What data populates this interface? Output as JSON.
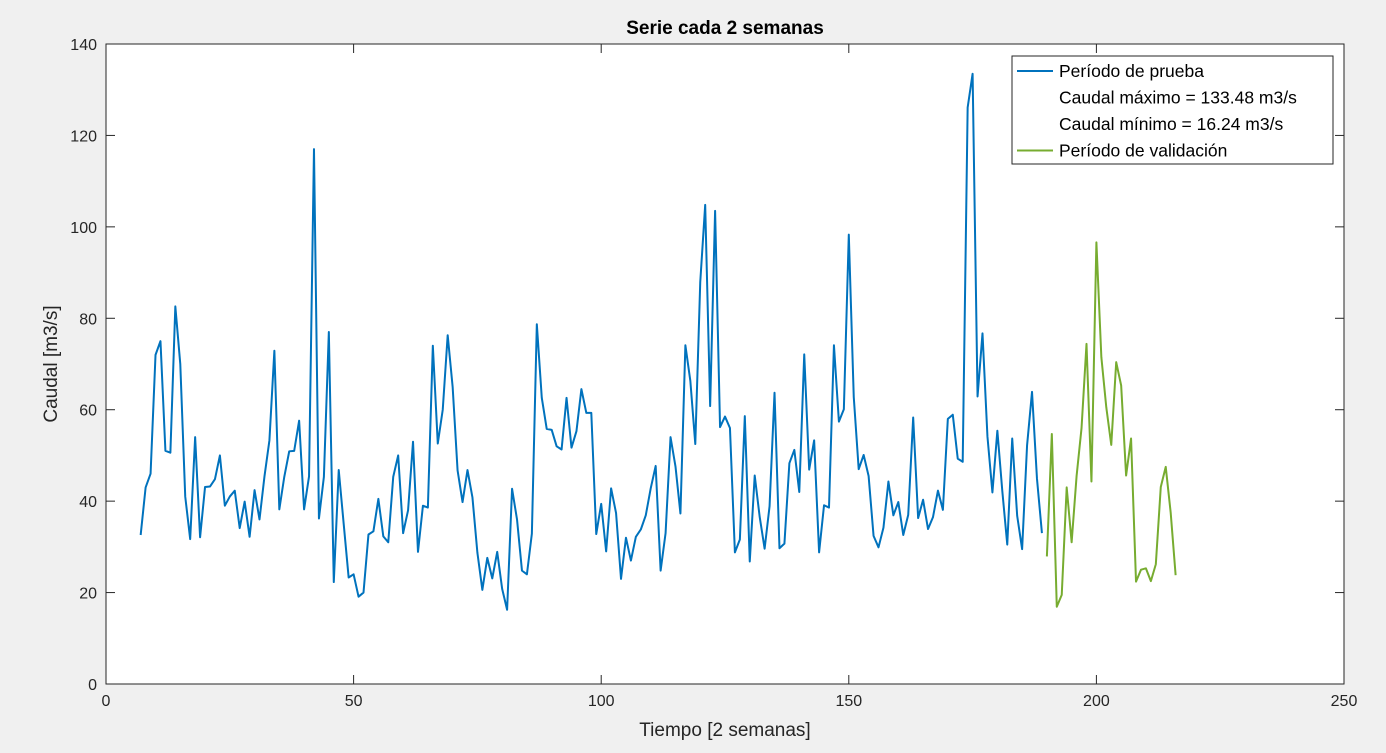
{
  "chart_data": {
    "type": "line",
    "title": "Serie cada 2 semanas",
    "xlabel": "Tiempo [2 semanas]",
    "ylabel": "Caudal [m3/s]",
    "xlim": [
      0,
      250
    ],
    "ylim": [
      0,
      140
    ],
    "xticks": [
      0,
      50,
      100,
      150,
      200,
      250
    ],
    "yticks": [
      0,
      20,
      40,
      60,
      80,
      100,
      120,
      140
    ],
    "grid": false,
    "legend_position": "top-right",
    "legend": [
      {
        "label": "Período de prueba",
        "line": true,
        "color": "#0072BD"
      },
      {
        "label": "Caudal máximo = 133.48 m3/s",
        "line": false
      },
      {
        "label": "Caudal mínimo = 16.24 m3/s",
        "line": false
      },
      {
        "label": "Período de validación",
        "line": true,
        "color": "#77AC30"
      }
    ],
    "series": [
      {
        "name": "Período de prueba",
        "color": "#0072BD",
        "x_start": 7,
        "values": [
          32.6,
          43,
          46,
          72,
          75,
          51,
          50.6,
          82.6,
          70,
          41,
          31.7,
          54,
          32.1,
          43.1,
          43.2,
          44.8,
          50,
          39,
          41,
          42.3,
          34.1,
          39.9,
          32.2,
          42.4,
          36,
          45.4,
          53.3,
          72.9,
          38.2,
          45.3,
          50.9,
          51,
          57.6,
          38.2,
          45.4,
          117,
          36.2,
          45.3,
          77,
          22.3,
          46.8,
          35,
          23.3,
          24,
          19.1,
          20,
          32.7,
          33.4,
          40.5,
          32.3,
          31,
          45.3,
          50,
          33,
          38,
          53,
          28.9,
          39,
          38.6,
          74,
          52.6,
          60,
          76.3,
          65,
          46.7,
          39.8,
          46.8,
          40.8,
          28.7,
          20.6,
          27.6,
          23.1,
          28.9,
          20.8,
          16.24,
          42.7,
          36,
          24.8,
          24,
          32.9,
          78.7,
          62.6,
          55.8,
          55.6,
          52,
          51.3,
          62.6,
          51.7,
          55.3,
          64.5,
          59.3,
          59.3,
          32.8,
          39.4,
          29,
          42.8,
          37.4,
          23,
          32,
          27,
          32.2,
          33.8,
          36.9,
          42.8,
          47.7,
          24.8,
          33,
          54,
          47.6,
          37.3,
          74.1,
          66.3,
          52.5,
          87.9,
          104.8,
          60.8,
          103.5,
          56.2,
          58.5,
          56,
          28.8,
          31.6,
          58.6,
          26.8,
          45.6,
          36.6,
          29.6,
          38.9,
          63.7,
          29.7,
          30.7,
          48.3,
          51.2,
          42,
          72.1,
          46.9,
          53.3,
          28.8,
          39.1,
          38.6,
          74.1,
          57.4,
          60.1,
          98.3,
          62.8,
          47,
          50.1,
          45.5,
          32.4,
          29.9,
          34.2,
          44.3,
          36.9,
          39.8,
          32.6,
          37,
          58.3,
          36.3,
          40.3,
          33.9,
          36.5,
          42.3,
          38.1,
          58,
          58.9,
          49.3,
          48.6,
          126.1,
          133.48,
          62.9,
          76.7,
          54.1,
          41.9,
          55.4,
          42.2,
          30.5,
          53.7,
          36.8,
          29.5,
          52.2,
          63.9,
          44.9,
          33
        ]
      },
      {
        "name": "Período de validación",
        "color": "#77AC30",
        "x_start": 190,
        "values": [
          27.9,
          54.7,
          16.9,
          19.5,
          43,
          31,
          45.5,
          56,
          74.4,
          44.3,
          96.6,
          71.5,
          60.5,
          52.3,
          70.4,
          65.3,
          45.6,
          53.7,
          22.4,
          25,
          25.3,
          22.5,
          26.2,
          43.1,
          47.5,
          37.5,
          23.8
        ]
      }
    ]
  }
}
